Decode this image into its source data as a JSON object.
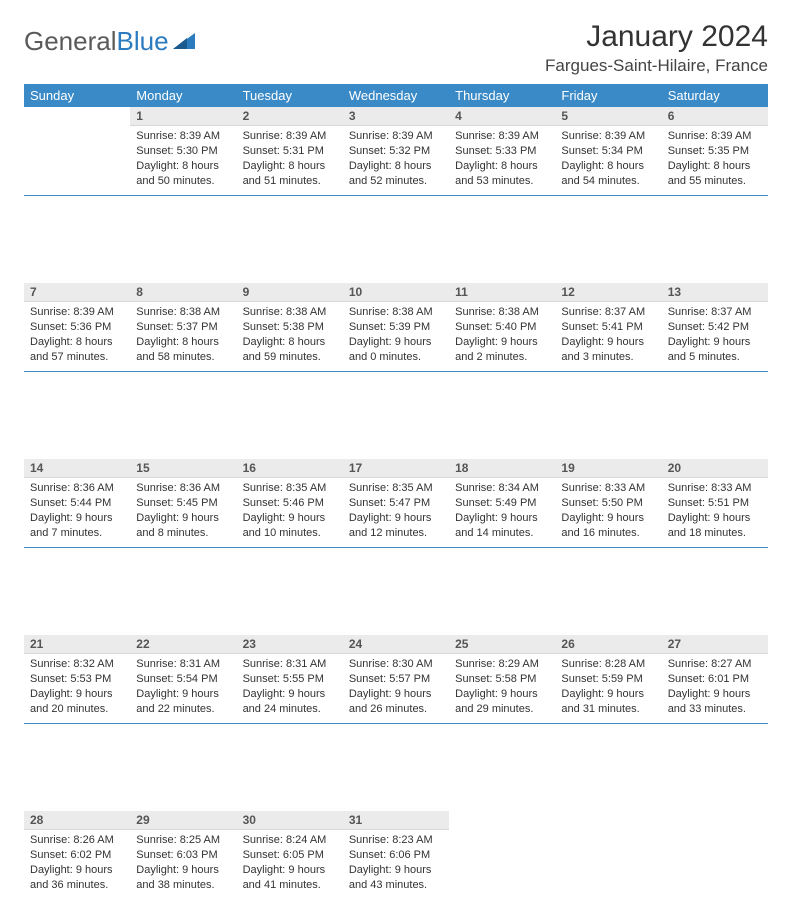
{
  "logo": {
    "part1": "General",
    "part2": "Blue"
  },
  "title": "January 2024",
  "location": "Fargues-Saint-Hilaire, France",
  "colors": {
    "header_bg": "#3a8ac7",
    "header_text": "#ffffff",
    "daynum_bg": "#ebebeb",
    "separator": "#3a8ac7",
    "logo_gray": "#5a5a5a",
    "logo_blue": "#2d7bbf"
  },
  "day_headers": [
    "Sunday",
    "Monday",
    "Tuesday",
    "Wednesday",
    "Thursday",
    "Friday",
    "Saturday"
  ],
  "weeks": [
    [
      null,
      {
        "n": "1",
        "sunrise": "8:39 AM",
        "sunset": "5:30 PM",
        "daylight": "8 hours and 50 minutes."
      },
      {
        "n": "2",
        "sunrise": "8:39 AM",
        "sunset": "5:31 PM",
        "daylight": "8 hours and 51 minutes."
      },
      {
        "n": "3",
        "sunrise": "8:39 AM",
        "sunset": "5:32 PM",
        "daylight": "8 hours and 52 minutes."
      },
      {
        "n": "4",
        "sunrise": "8:39 AM",
        "sunset": "5:33 PM",
        "daylight": "8 hours and 53 minutes."
      },
      {
        "n": "5",
        "sunrise": "8:39 AM",
        "sunset": "5:34 PM",
        "daylight": "8 hours and 54 minutes."
      },
      {
        "n": "6",
        "sunrise": "8:39 AM",
        "sunset": "5:35 PM",
        "daylight": "8 hours and 55 minutes."
      }
    ],
    [
      {
        "n": "7",
        "sunrise": "8:39 AM",
        "sunset": "5:36 PM",
        "daylight": "8 hours and 57 minutes."
      },
      {
        "n": "8",
        "sunrise": "8:38 AM",
        "sunset": "5:37 PM",
        "daylight": "8 hours and 58 minutes."
      },
      {
        "n": "9",
        "sunrise": "8:38 AM",
        "sunset": "5:38 PM",
        "daylight": "8 hours and 59 minutes."
      },
      {
        "n": "10",
        "sunrise": "8:38 AM",
        "sunset": "5:39 PM",
        "daylight": "9 hours and 0 minutes."
      },
      {
        "n": "11",
        "sunrise": "8:38 AM",
        "sunset": "5:40 PM",
        "daylight": "9 hours and 2 minutes."
      },
      {
        "n": "12",
        "sunrise": "8:37 AM",
        "sunset": "5:41 PM",
        "daylight": "9 hours and 3 minutes."
      },
      {
        "n": "13",
        "sunrise": "8:37 AM",
        "sunset": "5:42 PM",
        "daylight": "9 hours and 5 minutes."
      }
    ],
    [
      {
        "n": "14",
        "sunrise": "8:36 AM",
        "sunset": "5:44 PM",
        "daylight": "9 hours and 7 minutes."
      },
      {
        "n": "15",
        "sunrise": "8:36 AM",
        "sunset": "5:45 PM",
        "daylight": "9 hours and 8 minutes."
      },
      {
        "n": "16",
        "sunrise": "8:35 AM",
        "sunset": "5:46 PM",
        "daylight": "9 hours and 10 minutes."
      },
      {
        "n": "17",
        "sunrise": "8:35 AM",
        "sunset": "5:47 PM",
        "daylight": "9 hours and 12 minutes."
      },
      {
        "n": "18",
        "sunrise": "8:34 AM",
        "sunset": "5:49 PM",
        "daylight": "9 hours and 14 minutes."
      },
      {
        "n": "19",
        "sunrise": "8:33 AM",
        "sunset": "5:50 PM",
        "daylight": "9 hours and 16 minutes."
      },
      {
        "n": "20",
        "sunrise": "8:33 AM",
        "sunset": "5:51 PM",
        "daylight": "9 hours and 18 minutes."
      }
    ],
    [
      {
        "n": "21",
        "sunrise": "8:32 AM",
        "sunset": "5:53 PM",
        "daylight": "9 hours and 20 minutes."
      },
      {
        "n": "22",
        "sunrise": "8:31 AM",
        "sunset": "5:54 PM",
        "daylight": "9 hours and 22 minutes."
      },
      {
        "n": "23",
        "sunrise": "8:31 AM",
        "sunset": "5:55 PM",
        "daylight": "9 hours and 24 minutes."
      },
      {
        "n": "24",
        "sunrise": "8:30 AM",
        "sunset": "5:57 PM",
        "daylight": "9 hours and 26 minutes."
      },
      {
        "n": "25",
        "sunrise": "8:29 AM",
        "sunset": "5:58 PM",
        "daylight": "9 hours and 29 minutes."
      },
      {
        "n": "26",
        "sunrise": "8:28 AM",
        "sunset": "5:59 PM",
        "daylight": "9 hours and 31 minutes."
      },
      {
        "n": "27",
        "sunrise": "8:27 AM",
        "sunset": "6:01 PM",
        "daylight": "9 hours and 33 minutes."
      }
    ],
    [
      {
        "n": "28",
        "sunrise": "8:26 AM",
        "sunset": "6:02 PM",
        "daylight": "9 hours and 36 minutes."
      },
      {
        "n": "29",
        "sunrise": "8:25 AM",
        "sunset": "6:03 PM",
        "daylight": "9 hours and 38 minutes."
      },
      {
        "n": "30",
        "sunrise": "8:24 AM",
        "sunset": "6:05 PM",
        "daylight": "9 hours and 41 minutes."
      },
      {
        "n": "31",
        "sunrise": "8:23 AM",
        "sunset": "6:06 PM",
        "daylight": "9 hours and 43 minutes."
      },
      null,
      null,
      null
    ]
  ],
  "labels": {
    "sunrise": "Sunrise:",
    "sunset": "Sunset:",
    "daylight": "Daylight:"
  }
}
